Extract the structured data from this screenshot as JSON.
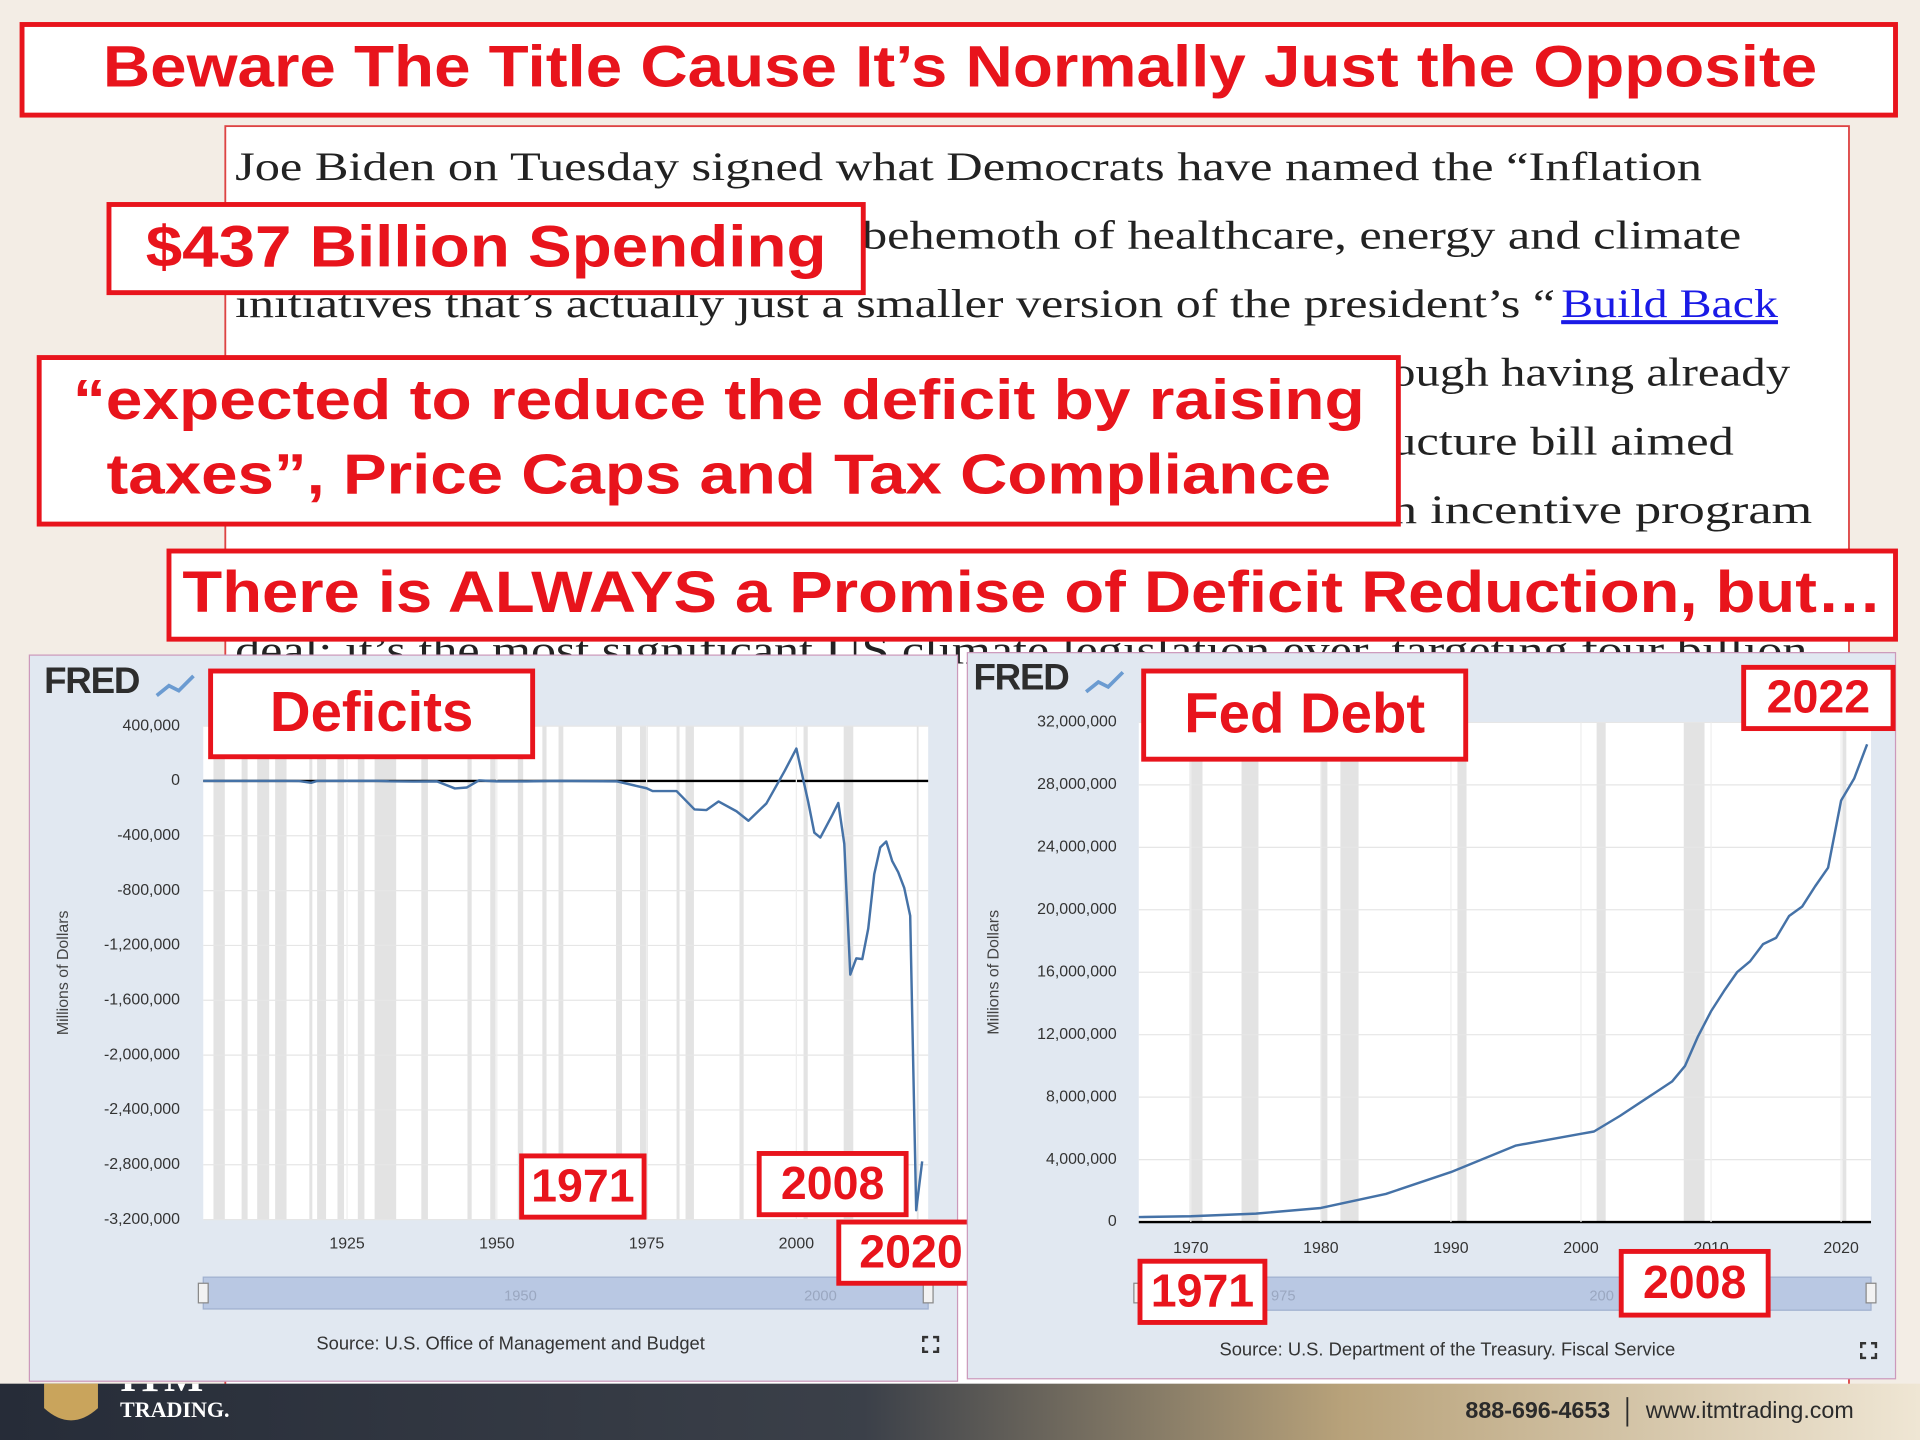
{
  "title": "Beware The Title Cause It’s Normally Just the Opposite",
  "article": {
    "lines": [
      "Joe Biden on Tuesday signed what Democrats have named the “Inflation",
      "behemoth of healthcare, energy and climate",
      "initiatives that’s actually just a smaller version of the president’s “",
      "ough having already",
      "ucture bill aimed",
      "n incentive program",
      "deal; it’s the most significant US climate legislation ever, targeting four billion"
    ],
    "link": "Build Back"
  },
  "callouts": [
    [
      "$437 Billion Spending"
    ],
    [
      "“expected to reduce the deficit by raising",
      "taxes”, Price Caps and Tax Compliance"
    ],
    [
      "There is ALWAYS a Promise of Deficit Reduction, but…"
    ]
  ],
  "chart_data": [
    {
      "type": "line",
      "logo": "FRED",
      "annotations": [
        "Deficits",
        "1971",
        "2008",
        "2020"
      ],
      "y_label": "Millions of Dollars",
      "source": "Source: U.S. Office of Management and Budget",
      "navigator_labels": [
        "1950",
        "2000"
      ],
      "color": "#4572a7",
      "xlim": [
        1901,
        2022
      ],
      "xticks": [
        1925,
        1950,
        1975,
        2000
      ],
      "ylim": [
        -3200000,
        400000
      ],
      "yticks": [
        {
          "value": 400000,
          "label": "400,000"
        },
        0,
        {
          "value": -400000,
          "label": "-400,000"
        },
        {
          "value": -800000,
          "label": "-800,000"
        },
        {
          "value": -1200000,
          "label": "-1,200,000"
        },
        {
          "value": -1600000,
          "label": "-1,600,000"
        },
        {
          "value": -2000000,
          "label": "-2,000,000"
        },
        {
          "value": -2400000,
          "label": "-2,400,000"
        },
        {
          "value": -2800000,
          "label": "-2,800,000"
        },
        {
          "value": -3200000,
          "label": "-3,200,000"
        }
      ],
      "grid": true,
      "recessions": [
        [
          1902.7,
          1904.6
        ],
        [
          1907.4,
          1908.4
        ],
        [
          1910,
          1912
        ],
        [
          1913,
          1914.9
        ],
        [
          1918.7,
          1919.2
        ],
        [
          1920,
          1921.5
        ],
        [
          1923.4,
          1924.5
        ],
        [
          1926.8,
          1927.9
        ],
        [
          1929.6,
          1933.2
        ],
        [
          1937.4,
          1938.5
        ],
        [
          1945.1,
          1945.8
        ],
        [
          1948.9,
          1949.8
        ],
        [
          1953.5,
          1954.4
        ],
        [
          1957.6,
          1958.3
        ],
        [
          1960.3,
          1961.1
        ],
        [
          1969.9,
          1970.9
        ],
        [
          1973.9,
          1975.2
        ],
        [
          1980,
          1980.5
        ],
        [
          1981.5,
          1982.9
        ],
        [
          1990.5,
          1991.2
        ],
        [
          2001.2,
          2001.9
        ],
        [
          2007.9,
          2009.5
        ],
        [
          2020.1,
          2020.4
        ]
      ],
      "x": [
        1901,
        1905,
        1910,
        1915,
        1917,
        1919,
        1920,
        1925,
        1930,
        1932,
        1936,
        1940,
        1943,
        1945,
        1947,
        1950,
        1955,
        1960,
        1965,
        1970,
        1975,
        1976,
        1980,
        1983,
        1985,
        1987,
        1990,
        1992,
        1995,
        1998,
        2000,
        2002,
        2003,
        2004,
        2006,
        2007,
        2008,
        2009,
        2010,
        2011,
        2012,
        2013,
        2014,
        2015,
        2016,
        2017,
        2018,
        2019,
        2020,
        2021
      ],
      "values": [
        63,
        -23,
        -18,
        -63,
        -853,
        -13363,
        291,
        717,
        738,
        -2735,
        -4425,
        -2920,
        -54554,
        -47553,
        4018,
        -3119,
        -2993,
        301,
        -1411,
        -2842,
        -53242,
        -73732,
        -73830,
        -207802,
        -212308,
        -149730,
        -221036,
        -290321,
        -164007,
        69270,
        236241,
        -157758,
        -377585,
        -412727,
        -248181,
        -160701,
        -458553,
        -1412688,
        -1294373,
        -1299599,
        -1076573,
        -679775,
        -484602,
        -441960,
        -584651,
        -665446,
        -779137,
        -983594,
        -3131917,
        -2775300
      ]
    },
    {
      "type": "line",
      "logo": "FRED",
      "annotations": [
        "Fed Debt",
        "2022",
        "1971",
        "2008"
      ],
      "y_label": "Millions of Dollars",
      "source": "Source: U.S. Department of the Treasury. Fiscal Service",
      "navigator_labels": [
        "975",
        "200"
      ],
      "color": "#4572a7",
      "xlim": [
        1966,
        2022.3
      ],
      "xticks": [
        1970,
        1980,
        1990,
        2000,
        2010,
        2020
      ],
      "ylim": [
        0,
        32000000
      ],
      "yticks": [
        0,
        {
          "value": 4000000,
          "label": "4,000,000"
        },
        {
          "value": 8000000,
          "label": "8,000,000"
        },
        {
          "value": 12000000,
          "label": "12,000,000"
        },
        {
          "value": 16000000,
          "label": "16,000,000"
        },
        {
          "value": 20000000,
          "label": "20,000,000"
        },
        {
          "value": 24000000,
          "label": "24,000,000"
        },
        {
          "value": 28000000,
          "label": "28,000,000"
        },
        {
          "value": 32000000,
          "label": "32,000,000"
        }
      ],
      "grid": true,
      "recessions": [
        [
          1969.9,
          1970.9
        ],
        [
          1973.9,
          1975.2
        ],
        [
          1980,
          1980.5
        ],
        [
          1981.5,
          1982.9
        ],
        [
          1990.5,
          1991.2
        ],
        [
          2001.2,
          2001.9
        ],
        [
          2007.9,
          2009.5
        ],
        [
          2020.1,
          2020.4
        ]
      ],
      "x": [
        1966,
        1970,
        1975,
        1980,
        1985,
        1990,
        1995,
        2000,
        2001,
        2003,
        2005,
        2007,
        2008,
        2009,
        2010,
        2011,
        2012,
        2013,
        2014,
        2015,
        2016,
        2017,
        2018,
        2019,
        2020,
        2021,
        2022
      ],
      "values": [
        320000,
        370000,
        540000,
        900000,
        1800000,
        3200000,
        4900000,
        5650000,
        5800000,
        6800000,
        7900000,
        9000000,
        10000000,
        11900000,
        13500000,
        14800000,
        16000000,
        16700000,
        17800000,
        18200000,
        19600000,
        20200000,
        21500000,
        22700000,
        27000000,
        28400000,
        30600000
      ]
    }
  ],
  "footer": {
    "logo": [
      "ITM",
      "TRADING."
    ],
    "phone": "888-696-4653",
    "website": "www.itmtrading.com"
  }
}
